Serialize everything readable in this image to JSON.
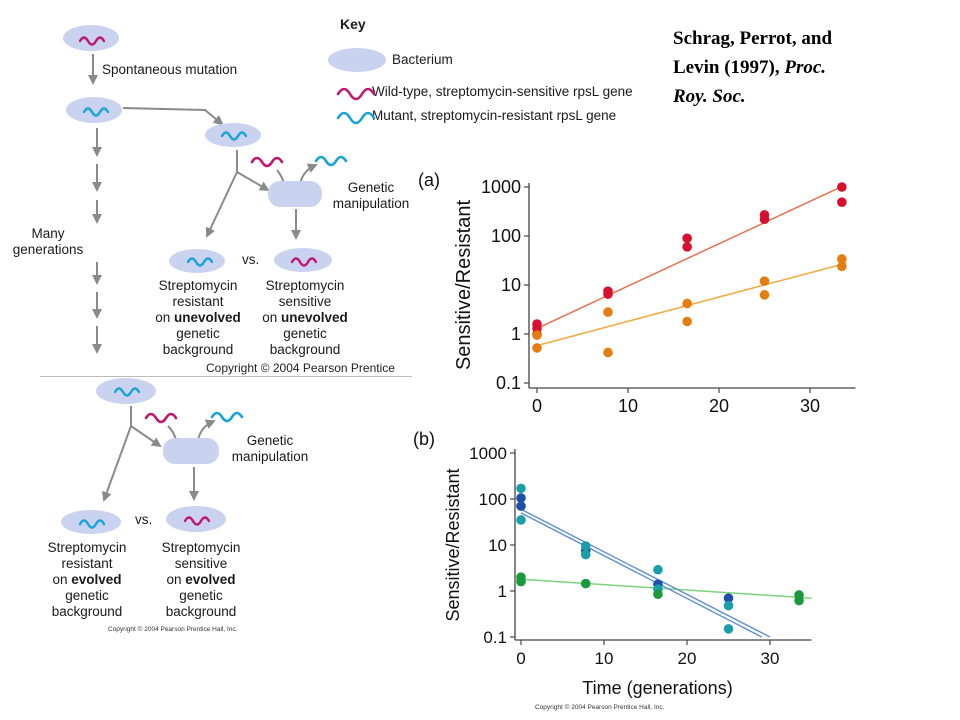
{
  "citation": {
    "line1": "Schrag, Perrot, and",
    "line2_normal": "Levin (1997), ",
    "line2_italic": "Proc.",
    "line3_italic": "Roy. Soc."
  },
  "key": {
    "title": "Key",
    "bacterium": "Bacterium",
    "wild_type": "Wild-type, streptomycin-sensitive rpsL gene",
    "mutant": "Mutant, streptomycin-resistant rpsL gene"
  },
  "diagram": {
    "spontaneous_mutation": "Spontaneous mutation",
    "many_generations": [
      "Many",
      "generations"
    ],
    "genetic_manipulation": [
      "Genetic",
      "manipulation"
    ],
    "vs": "vs.",
    "top_resistant": [
      "Streptomycin",
      "resistant",
      "on ",
      "unevolved",
      "genetic",
      "background"
    ],
    "top_sensitive": [
      "Streptomycin",
      "sensitive",
      "on ",
      "unevolved",
      "genetic",
      "background"
    ],
    "bottom_resistant": [
      "Streptomycin",
      "resistant",
      "on ",
      "evolved",
      "genetic",
      "background"
    ],
    "bottom_sensitive": [
      "Streptomycin",
      "sensitive",
      "on ",
      "evolved",
      "genetic",
      "background"
    ],
    "copyright_top": "Copyright © 2004 Pearson Prentice",
    "copyright_bottom": "Copyright © 2004 Pearson Prentice Hall, Inc."
  },
  "colors": {
    "bacterium": "#c9d3ef",
    "wild_type": "#c0186e",
    "mutant": "#1aa3d8",
    "arrow": "#8a8a8a",
    "red_series": "#d8102f",
    "orange_series": "#e57c10",
    "red_line": "#e8704f",
    "orange_line": "#f2a93e",
    "navy_series": "#1e4fa8",
    "teal_series": "#1a9ea8",
    "green_series": "#1a9a3a",
    "green_line": "#7dd37d",
    "blue_line": "#5f8fd2"
  },
  "chart_data": [
    {
      "type": "scatter",
      "panel_label": "(a)",
      "ylabel": "Sensitive/Resistant",
      "xlabel": "",
      "y_scale": "log",
      "ylim": [
        0.1,
        1000
      ],
      "xlim": [
        -1,
        35
      ],
      "x_ticks": [
        0,
        10,
        20,
        30
      ],
      "y_ticks": [
        0.1,
        1,
        10,
        100,
        1000
      ],
      "y_tick_labels": [
        "0.1",
        "1",
        "10",
        "100",
        "1000"
      ],
      "series": [
        {
          "color_key": "red_series",
          "points": [
            [
              0,
              1.6
            ],
            [
              0,
              1.3
            ],
            [
              0,
              1.0
            ],
            [
              7.8,
              7.5
            ],
            [
              7.8,
              6.5
            ],
            [
              16.5,
              90
            ],
            [
              16.5,
              60
            ],
            [
              25,
              270
            ],
            [
              25,
              220
            ],
            [
              33.5,
              1000
            ],
            [
              33.5,
              490
            ]
          ],
          "fit": [
            [
              0,
              1.3
            ],
            [
              33.5,
              1020
            ]
          ]
        },
        {
          "color_key": "orange_series",
          "points": [
            [
              0,
              0.95
            ],
            [
              0,
              0.52
            ],
            [
              7.8,
              2.8
            ],
            [
              7.8,
              0.42
            ],
            [
              16.5,
              4.2
            ],
            [
              16.5,
              1.8
            ],
            [
              25,
              12
            ],
            [
              25,
              6.3
            ],
            [
              33.5,
              34
            ],
            [
              33.5,
              24
            ]
          ],
          "fit": [
            [
              0,
              0.58
            ],
            [
              34,
              28
            ]
          ]
        }
      ]
    },
    {
      "type": "scatter",
      "panel_label": "(b)",
      "ylabel": "Sensitive/Resistant",
      "xlabel": "Time (generations)",
      "y_scale": "log",
      "ylim": [
        0.1,
        1000
      ],
      "xlim": [
        -1,
        35
      ],
      "x_ticks": [
        0,
        10,
        20,
        30
      ],
      "y_ticks": [
        0.1,
        1,
        10,
        100,
        1000
      ],
      "y_tick_labels": [
        "0.1",
        "1",
        "10",
        "100",
        "1000"
      ],
      "series": [
        {
          "color_key": "navy_series",
          "points": [
            [
              0,
              105
            ],
            [
              0,
              70
            ],
            [
              7.8,
              7.5
            ],
            [
              16.5,
              1.4
            ],
            [
              25,
              0.7
            ]
          ]
        },
        {
          "color_key": "teal_series",
          "points": [
            [
              0,
              170
            ],
            [
              0,
              35
            ],
            [
              7.8,
              9.5
            ],
            [
              7.8,
              6.2
            ],
            [
              16.5,
              2.9
            ],
            [
              16.5,
              1.1
            ],
            [
              25,
              0.48
            ],
            [
              25,
              0.15
            ]
          ]
        },
        {
          "color_key": "green_series",
          "points": [
            [
              0,
              2.0
            ],
            [
              0,
              1.6
            ],
            [
              7.8,
              1.45
            ],
            [
              16.5,
              0.85
            ],
            [
              33.5,
              0.82
            ],
            [
              33.5,
              0.62
            ]
          ],
          "fit": [
            [
              0,
              1.8
            ],
            [
              35,
              0.7
            ]
          ]
        }
      ],
      "fits": [
        {
          "color_key": "blue_line",
          "points": [
            [
              0,
              60
            ],
            [
              30,
              0.1
            ]
          ]
        },
        {
          "color_key": "blue_line",
          "points": [
            [
              0,
              50
            ],
            [
              29,
              0.1
            ]
          ]
        }
      ]
    }
  ],
  "copyright_charts": "Copyright © 2004 Pearson Prentice Hall, Inc."
}
